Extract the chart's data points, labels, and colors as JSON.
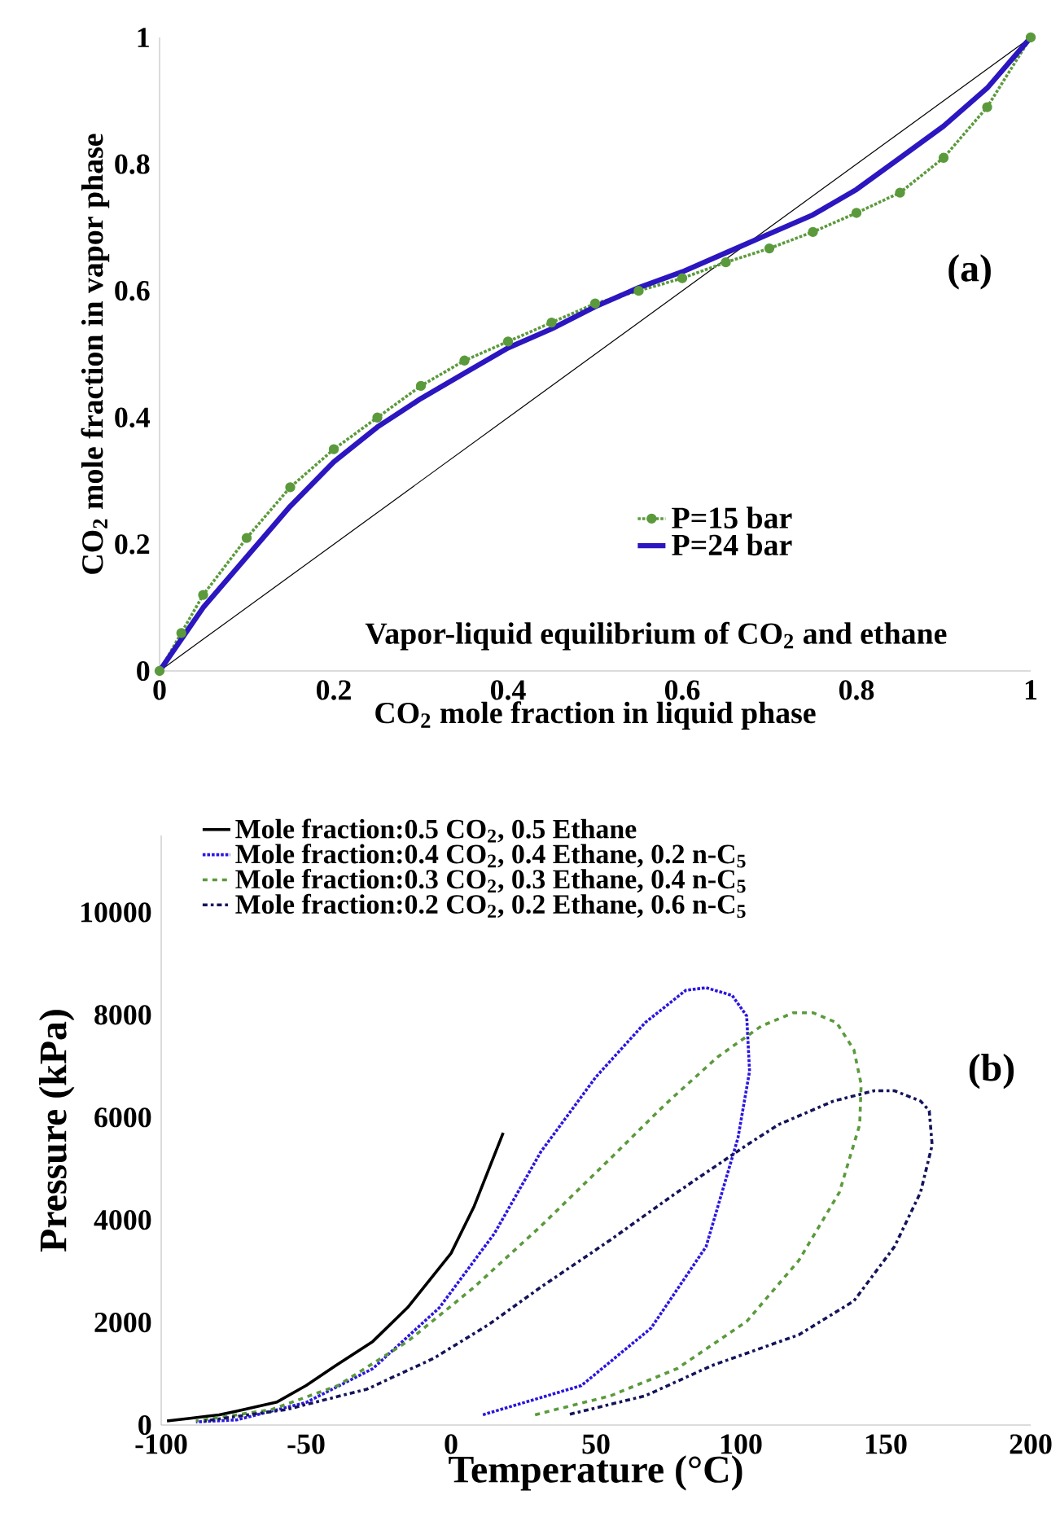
{
  "chart_data": [
    {
      "type": "line",
      "xlabel": "CO$_{2}$ mole fraction in liquid phase",
      "ylabel": "CO$_{2}$ mole fraction in vapor phase",
      "annotations": [
        "(a)",
        "Vapor-liquid equilibrium of CO$_{2}$ and ethane"
      ],
      "xlim": [
        0,
        1
      ],
      "ylim": [
        0,
        1
      ],
      "xticks": [
        0,
        0.2,
        0.4,
        0.6,
        0.8,
        1
      ],
      "yticks": [
        0,
        0.2,
        0.4,
        0.6,
        0.8,
        1
      ],
      "grid": false,
      "legend": "bottom right",
      "series": [
        {
          "color": "#000000",
          "line_style": "solid",
          "marker": "none",
          "x": [
            0,
            1
          ],
          "values": [
            0,
            1
          ]
        },
        {
          "name": "P=15 bar",
          "color": "#5b9a3c",
          "line_style": "dotted",
          "marker": "circle",
          "x": [
            0,
            0.025,
            0.05,
            0.1,
            0.15,
            0.2,
            0.25,
            0.3,
            0.35,
            0.4,
            0.45,
            0.5,
            0.55,
            0.6,
            0.65,
            0.7,
            0.75,
            0.8,
            0.85,
            0.9,
            0.95,
            1
          ],
          "values": [
            0,
            0.06,
            0.12,
            0.21,
            0.29,
            0.35,
            0.4,
            0.45,
            0.49,
            0.52,
            0.55,
            0.58,
            0.6,
            0.62,
            0.645,
            0.667,
            0.693,
            0.723,
            0.755,
            0.81,
            0.89,
            1
          ]
        },
        {
          "name": "P=24 bar",
          "color": "#2b16c0",
          "line_style": "solid",
          "marker": "none",
          "x": [
            0,
            0.05,
            0.1,
            0.15,
            0.2,
            0.25,
            0.3,
            0.35,
            0.4,
            0.45,
            0.5,
            0.55,
            0.6,
            0.65,
            0.7,
            0.75,
            0.8,
            0.85,
            0.9,
            0.95,
            1
          ],
          "values": [
            0,
            0.1,
            0.18,
            0.26,
            0.33,
            0.385,
            0.43,
            0.47,
            0.51,
            0.54,
            0.575,
            0.605,
            0.63,
            0.66,
            0.69,
            0.72,
            0.76,
            0.81,
            0.86,
            0.92,
            1
          ]
        }
      ]
    },
    {
      "type": "line",
      "xlabel": "Temperature (°C)",
      "ylabel": "Pressure (kPa)",
      "annotations": [
        "(b)"
      ],
      "xlim": [
        -100,
        200
      ],
      "ylim": [
        0,
        11500
      ],
      "xticks": [
        -100,
        -50,
        0,
        50,
        100,
        150,
        200
      ],
      "yticks": [
        0,
        2000,
        4000,
        6000,
        8000,
        10000
      ],
      "grid": false,
      "legend": "top",
      "series": [
        {
          "name": "Mole fraction:0.5 CO$_{2}$, 0.5 Ethane",
          "color": "#000000",
          "line_style": "solid",
          "marker": "none",
          "x": [
            -98,
            -90,
            -80,
            -74,
            -60,
            -50,
            -40,
            -27,
            -15,
            0,
            8,
            18
          ],
          "values": [
            80,
            130,
            200,
            270,
            450,
            770,
            1150,
            1630,
            2290,
            3350,
            4270,
            5700
          ]
        },
        {
          "name": "Mole fraction:0.4 CO$_{2}$, 0.4 Ethane, 0.2 n-C$_{5}$",
          "color": "#2b16e0",
          "line_style": "dotted",
          "marker": "none",
          "x": [
            11,
            45,
            69,
            88,
            99,
            103,
            102,
            97,
            88,
            81,
            67,
            50,
            31,
            15,
            -4,
            -27,
            -50,
            -74,
            -88
          ],
          "values": [
            200,
            770,
            1890,
            3480,
            5600,
            6900,
            7980,
            8380,
            8530,
            8480,
            7850,
            6790,
            5330,
            3740,
            2290,
            1100,
            440,
            100,
            60
          ]
        },
        {
          "name": "Mole fraction:0.3 CO$_{2}$, 0.3 Ethane, 0.4 n-C$_{5}$",
          "color": "#5b9a3c",
          "line_style": "dashed",
          "marker": "none",
          "x": [
            29,
            55,
            78,
            102,
            120,
            134,
            141,
            141.5,
            139,
            133,
            125,
            118,
            107,
            92,
            74,
            55,
            31,
            8,
            -15,
            -39,
            -62,
            -88
          ],
          "values": [
            200,
            570,
            1100,
            2020,
            3210,
            4540,
            5860,
            6650,
            7320,
            7850,
            8040,
            8040,
            7780,
            7180,
            6260,
            5200,
            3880,
            2690,
            1630,
            770,
            300,
            80
          ]
        },
        {
          "name": "Mole fraction:0.2 CO$_{2}$, 0.2 Ethane, 0.6 n-C$_{5}$",
          "color": "#14145a",
          "line_style": "dashdot",
          "marker": "none",
          "x": [
            41,
            67,
            90,
            120,
            139,
            153,
            162,
            166,
            165,
            162,
            153,
            146,
            132,
            113,
            102,
            78,
            55,
            31,
            13,
            -6,
            -29,
            -57,
            -85
          ],
          "values": [
            210,
            570,
            1160,
            1760,
            2420,
            3480,
            4540,
            5460,
            6130,
            6320,
            6520,
            6520,
            6320,
            5860,
            5460,
            4540,
            3610,
            2690,
            1960,
            1300,
            700,
            300,
            80
          ]
        }
      ]
    }
  ]
}
